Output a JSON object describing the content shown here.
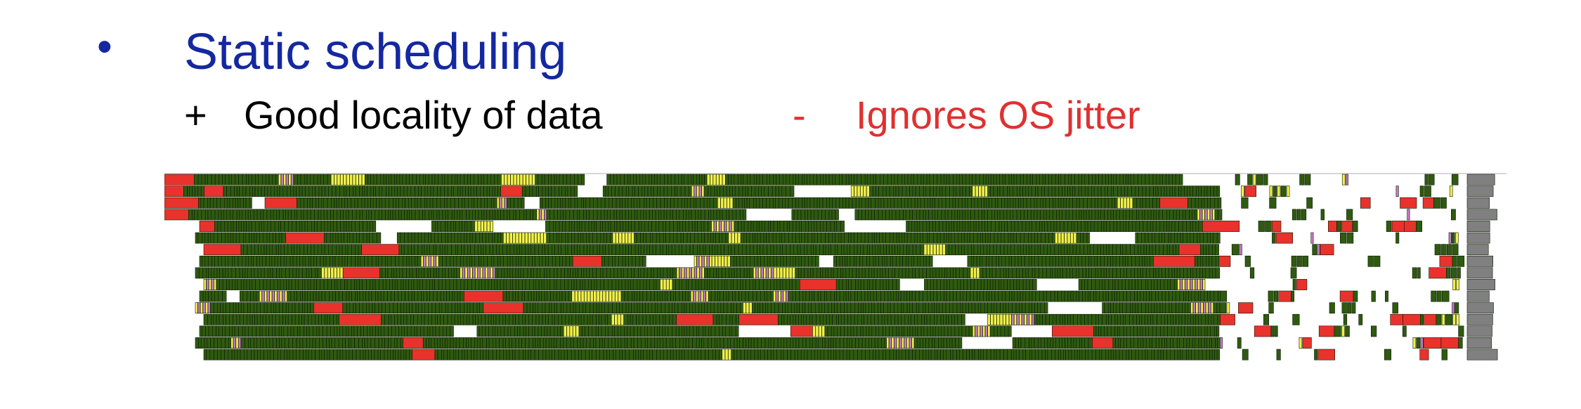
{
  "slide": {
    "bullet": "•",
    "title": "Static scheduling",
    "pro_marker": "+",
    "pro_text": "Good locality of data",
    "con_marker": "-",
    "con_text": "Ignores OS jitter"
  },
  "trace_colors": {
    "compute": "#2f5a10",
    "compute_stroke": "#0b1a04",
    "overhead_red": "#e8322b",
    "sync_yellow": "#f2f04a",
    "comm_pink": "#c879c8",
    "idle_gray": "#808080",
    "axis_line": "#c8c8c8"
  },
  "trace_icon": "execution-trace-timeline"
}
